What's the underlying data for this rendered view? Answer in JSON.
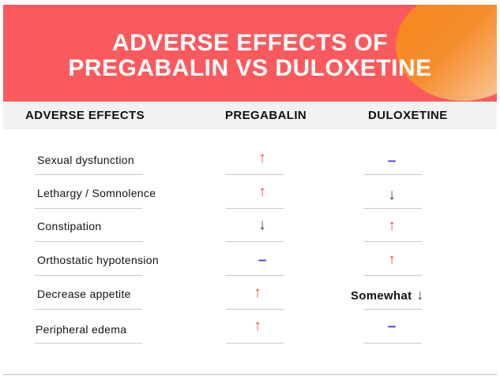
{
  "title": {
    "line1": "ADVERSE EFFECTS OF",
    "line2": "PREGABALIN VS DULOXETINE"
  },
  "columns": {
    "effects": "ADVERSE EFFECTS",
    "pregabalin": "PREGABALIN",
    "duloxetine": "DULOXETINE"
  },
  "rows": [
    {
      "effect": "Sexual dysfunction",
      "pregabalin": "↑",
      "duloxetine": "–"
    },
    {
      "effect": "Lethargy / Somnolence",
      "pregabalin": "↑",
      "duloxetine": "↓"
    },
    {
      "effect": "Constipation",
      "pregabalin": "↓",
      "duloxetine": "↑"
    },
    {
      "effect": "Orthostatic hypotension",
      "pregabalin": "–",
      "duloxetine": "↑"
    },
    {
      "effect": "Decrease appetite",
      "pregabalin": "↑",
      "duloxetine": "↓",
      "duloxetine_prefix": "Somewhat"
    },
    {
      "effect": "Peripheral edema",
      "pregabalin": "↑",
      "duloxetine": "–"
    }
  ],
  "colors": {
    "banner": "#fa5a5e",
    "increase": "#f04545",
    "decrease": "#1d4a2a",
    "no_change": "#5d35e6"
  }
}
